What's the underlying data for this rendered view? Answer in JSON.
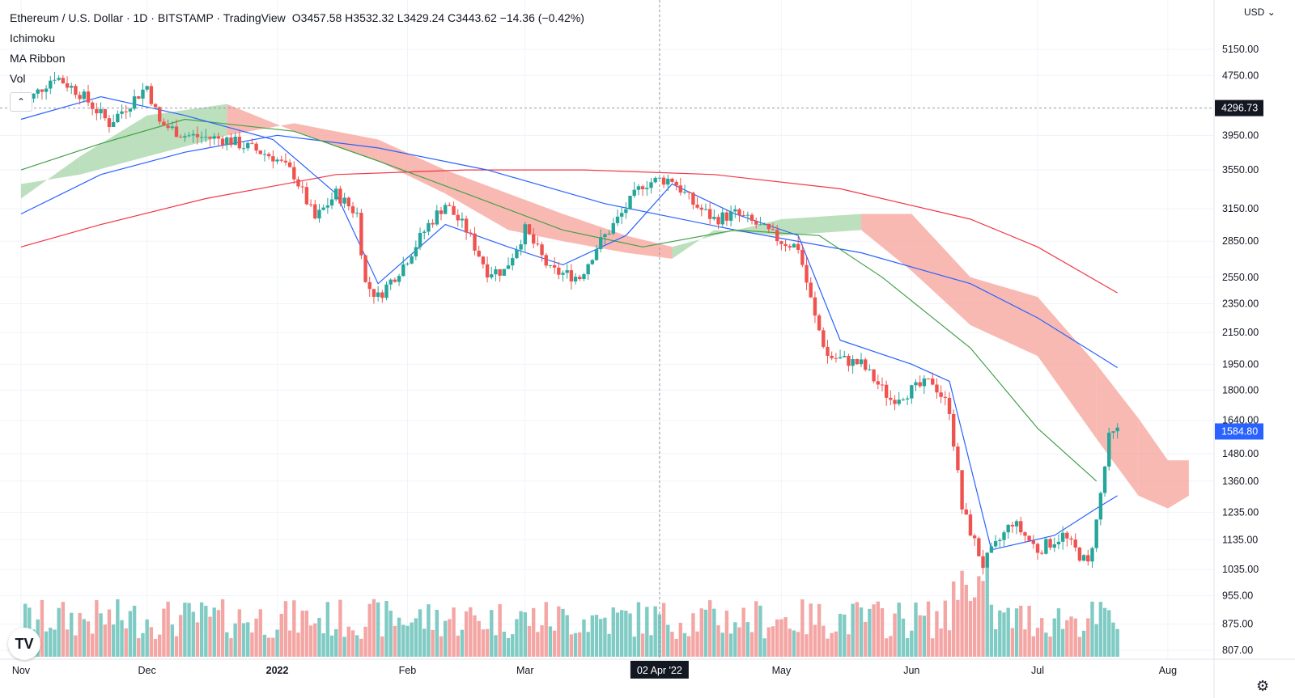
{
  "legend": {
    "symbol": "Ethereum / U.S. Dollar · 1D · BITSTAMP · TradingView",
    "ohlc": "O3457.58  H3532.32  L3429.24  C3443.62  −14.36 (−0.42%)",
    "indicators": [
      "Ichimoku",
      "MA Ribbon",
      "Vol"
    ]
  },
  "currency_label": "USD",
  "icons": {
    "collapse": "chevron-up-icon",
    "logo": "tradingview-logo-icon",
    "settings": "gear-icon"
  },
  "colors": {
    "up": "#26a69a",
    "down": "#ef5350",
    "cloud_bull": "#a5d6a7",
    "cloud_bear": "#f7a199",
    "ma_fast": "#2962ff",
    "ma_mid": "#43a047",
    "ma_slow": "#f23645"
  },
  "crosshair": {
    "date_label": "02 Apr '22",
    "price_label": "4296.73"
  },
  "last_price_label": "1584.80",
  "chart_data": {
    "type": "candlestick",
    "y_axis": {
      "scale": "log",
      "ticks": [
        5150,
        4750,
        4296.73,
        3950,
        3550,
        3150,
        2850,
        2550,
        2350,
        2150,
        1950,
        1800,
        1640,
        1480,
        1360,
        1235,
        1135,
        1035,
        955,
        875,
        807
      ],
      "tick_labels": [
        "5150.00",
        "4750.00",
        "4296.73",
        "3950.00",
        "3550.00",
        "3150.00",
        "2850.00",
        "2550.00",
        "2350.00",
        "2150.00",
        "1950.00",
        "1800.00",
        "1640.00",
        "1480.00",
        "1360.00",
        "1235.00",
        "1135.00",
        "1035.00",
        "955.00",
        "875.00",
        "807.00"
      ]
    },
    "x_axis": {
      "labels": [
        "Nov",
        "Dec",
        "2022",
        "Feb",
        "Mar",
        "02 Apr '22",
        "May",
        "Jun",
        "Jul",
        "Aug"
      ]
    },
    "price_anchors": [
      [
        "2021-11-01",
        4300
      ],
      [
        "2021-11-09",
        4750
      ],
      [
        "2021-11-15",
        4500
      ],
      [
        "2021-11-22",
        4100
      ],
      [
        "2021-12-01",
        4600
      ],
      [
        "2021-12-04",
        4100
      ],
      [
        "2021-12-10",
        3950
      ],
      [
        "2021-12-20",
        3900
      ],
      [
        "2021-12-31",
        3700
      ],
      [
        "2022-01-05",
        3500
      ],
      [
        "2022-01-10",
        3050
      ],
      [
        "2022-01-15",
        3300
      ],
      [
        "2022-01-20",
        3100
      ],
      [
        "2022-01-22",
        2500
      ],
      [
        "2022-01-25",
        2400
      ],
      [
        "2022-01-31",
        2650
      ],
      [
        "2022-02-06",
        3000
      ],
      [
        "2022-02-10",
        3200
      ],
      [
        "2022-02-15",
        2950
      ],
      [
        "2022-02-20",
        2600
      ],
      [
        "2022-02-24",
        2600
      ],
      [
        "2022-03-01",
        2950
      ],
      [
        "2022-03-07",
        2600
      ],
      [
        "2022-03-14",
        2550
      ],
      [
        "2022-03-18",
        2800
      ],
      [
        "2022-03-24",
        3100
      ],
      [
        "2022-03-29",
        3400
      ],
      [
        "2022-04-02",
        3443.62
      ],
      [
        "2022-04-05",
        3450
      ],
      [
        "2022-04-10",
        3200
      ],
      [
        "2022-04-15",
        3050
      ],
      [
        "2022-04-20",
        3100
      ],
      [
        "2022-04-25",
        3000
      ],
      [
        "2022-05-01",
        2850
      ],
      [
        "2022-05-05",
        2800
      ],
      [
        "2022-05-09",
        2250
      ],
      [
        "2022-05-12",
        2000
      ],
      [
        "2022-05-20",
        1950
      ],
      [
        "2022-05-27",
        1750
      ],
      [
        "2022-06-01",
        1800
      ],
      [
        "2022-06-06",
        1850
      ],
      [
        "2022-06-10",
        1700
      ],
      [
        "2022-06-13",
        1250
      ],
      [
        "2022-06-18",
        1050
      ],
      [
        "2022-06-25",
        1200
      ],
      [
        "2022-07-01",
        1100
      ],
      [
        "2022-07-07",
        1150
      ],
      [
        "2022-07-13",
        1050
      ],
      [
        "2022-07-15",
        1200
      ],
      [
        "2022-07-18",
        1550
      ],
      [
        "2022-07-20",
        1584.8
      ]
    ],
    "volume_range": [
      0,
      100
    ],
    "cloud": [
      [
        "2021-11-01",
        3400,
        3250,
        "bear"
      ],
      [
        "2021-11-15",
        3500,
        3700,
        "bull"
      ],
      [
        "2021-12-01",
        3700,
        4200,
        "bull"
      ],
      [
        "2021-12-20",
        3950,
        4350,
        "bull"
      ],
      [
        "2022-01-05",
        4100,
        4000,
        "bear"
      ],
      [
        "2022-01-25",
        3900,
        3650,
        "bear"
      ],
      [
        "2022-02-10",
        3550,
        3300,
        "bear"
      ],
      [
        "2022-02-25",
        3300,
        2950,
        "bear"
      ],
      [
        "2022-03-10",
        3100,
        2850,
        "bear"
      ],
      [
        "2022-03-25",
        2900,
        2750,
        "bear"
      ],
      [
        "2022-04-05",
        2800,
        2700,
        "bear"
      ],
      [
        "2022-04-15",
        2900,
        2950,
        "bull"
      ],
      [
        "2022-05-01",
        3050,
        2900,
        "bull"
      ],
      [
        "2022-05-20",
        3100,
        2950,
        "bull"
      ],
      [
        "2022-06-01",
        3100,
        2600,
        "bear"
      ],
      [
        "2022-06-15",
        2550,
        2200,
        "bear"
      ],
      [
        "2022-07-01",
        2400,
        2000,
        "bear"
      ],
      [
        "2022-07-15",
        1950,
        1550,
        "bear"
      ],
      [
        "2022-07-25",
        1650,
        1300,
        "bear"
      ],
      [
        "2022-08-01",
        1450,
        1250,
        "bear"
      ],
      [
        "2022-08-06",
        1450,
        1300,
        "bear"
      ]
    ],
    "ma_fast": [
      [
        "2021-11-01",
        4150
      ],
      [
        "2021-11-20",
        4450
      ],
      [
        "2021-12-10",
        4200
      ],
      [
        "2021-12-31",
        3900
      ],
      [
        "2022-01-15",
        3300
      ],
      [
        "2022-01-25",
        2500
      ],
      [
        "2022-02-10",
        3000
      ],
      [
        "2022-02-25",
        2800
      ],
      [
        "2022-03-10",
        2650
      ],
      [
        "2022-03-25",
        2900
      ],
      [
        "2022-04-05",
        3400
      ],
      [
        "2022-04-20",
        3100
      ],
      [
        "2022-05-05",
        2900
      ],
      [
        "2022-05-15",
        2100
      ],
      [
        "2022-06-01",
        1950
      ],
      [
        "2022-06-10",
        1850
      ],
      [
        "2022-06-20",
        1100
      ],
      [
        "2022-07-05",
        1150
      ],
      [
        "2022-07-15",
        1250
      ],
      [
        "2022-07-20",
        1300
      ]
    ],
    "ma_mid": [
      [
        "2021-11-01",
        3550
      ],
      [
        "2021-11-20",
        3850
      ],
      [
        "2021-12-10",
        4150
      ],
      [
        "2022-01-05",
        4000
      ],
      [
        "2022-01-25",
        3650
      ],
      [
        "2022-02-15",
        3300
      ],
      [
        "2022-03-10",
        2950
      ],
      [
        "2022-03-29",
        2800
      ],
      [
        "2022-04-20",
        2950
      ],
      [
        "2022-05-10",
        2900
      ],
      [
        "2022-05-25",
        2550
      ],
      [
        "2022-06-15",
        2050
      ],
      [
        "2022-07-01",
        1600
      ],
      [
        "2022-07-15",
        1360
      ]
    ],
    "ma_slow_blue": [
      [
        "2021-11-01",
        3100
      ],
      [
        "2021-11-20",
        3500
      ],
      [
        "2021-12-10",
        3750
      ],
      [
        "2022-01-01",
        3950
      ],
      [
        "2022-01-25",
        3800
      ],
      [
        "2022-02-20",
        3550
      ],
      [
        "2022-03-20",
        3200
      ],
      [
        "2022-04-20",
        2950
      ],
      [
        "2022-05-20",
        2750
      ],
      [
        "2022-06-15",
        2500
      ],
      [
        "2022-07-01",
        2250
      ],
      [
        "2022-07-20",
        1930
      ]
    ],
    "ma_slow_red": [
      [
        "2021-11-01",
        2800
      ],
      [
        "2021-11-20",
        3000
      ],
      [
        "2021-12-15",
        3250
      ],
      [
        "2022-01-15",
        3500
      ],
      [
        "2022-02-15",
        3550
      ],
      [
        "2022-03-15",
        3550
      ],
      [
        "2022-04-15",
        3500
      ],
      [
        "2022-05-15",
        3350
      ],
      [
        "2022-06-15",
        3050
      ],
      [
        "2022-07-01",
        2800
      ],
      [
        "2022-07-20",
        2430
      ]
    ]
  }
}
